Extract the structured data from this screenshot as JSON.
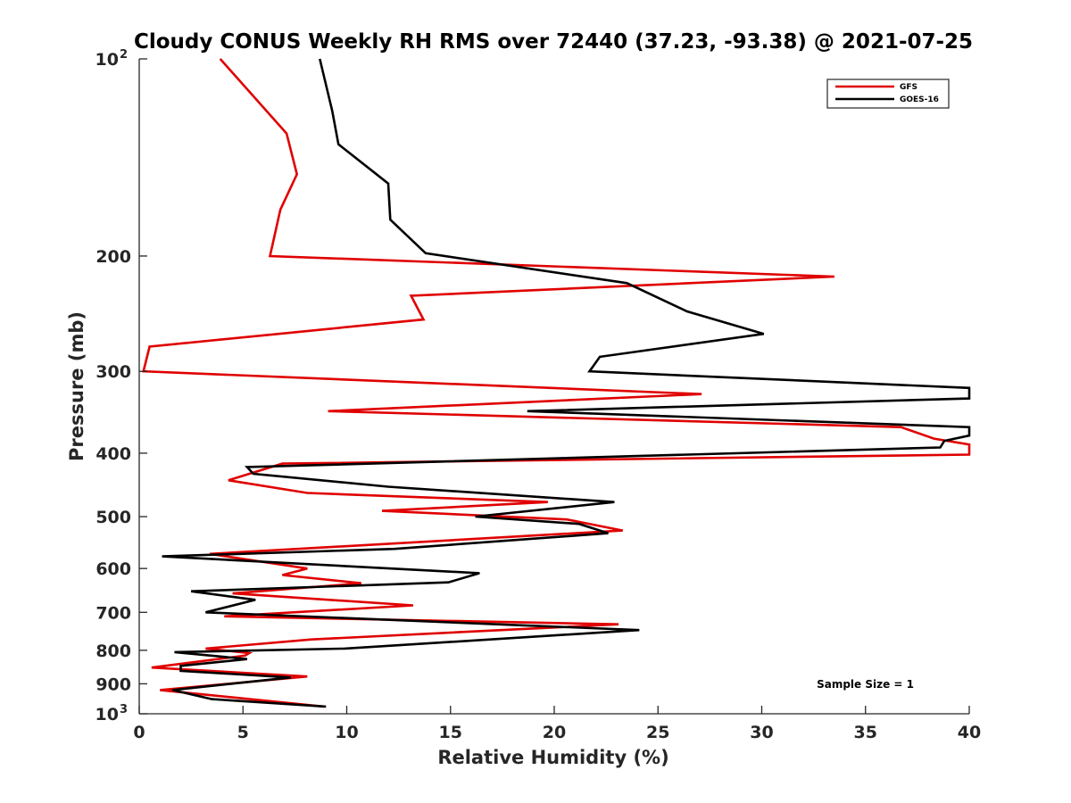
{
  "chart_data": {
    "type": "line",
    "title": "Cloudy CONUS Weekly RH RMS over 72440 (37.23, -93.38) @ 2021-07-25",
    "xlabel": "Relative Humidity (%)",
    "ylabel": "Pressure (mb)",
    "xlim": [
      0,
      40
    ],
    "ylim": [
      100,
      1000
    ],
    "y_scale": "log",
    "y_reversed": true,
    "grid": false,
    "legend_position": "top-right",
    "annotation": "Sample Size = 1",
    "x_ticks": [
      "0",
      "5",
      "10",
      "15",
      "20",
      "25",
      "30",
      "35",
      "40"
    ],
    "y_ticks": [
      {
        "value": 100,
        "base": "10",
        "exp": "2"
      },
      {
        "value": 200,
        "base": "200",
        "exp": ""
      },
      {
        "value": 300,
        "base": "300",
        "exp": ""
      },
      {
        "value": 400,
        "base": "400",
        "exp": ""
      },
      {
        "value": 500,
        "base": "500",
        "exp": ""
      },
      {
        "value": 600,
        "base": "600",
        "exp": ""
      },
      {
        "value": 700,
        "base": "700",
        "exp": ""
      },
      {
        "value": 800,
        "base": "800",
        "exp": ""
      },
      {
        "value": 900,
        "base": "900",
        "exp": ""
      },
      {
        "value": 1000,
        "base": "10",
        "exp": "3"
      }
    ],
    "series": [
      {
        "name": "GFS",
        "color": "#e00000",
        "points": [
          [
            3.9,
            100
          ],
          [
            7.1,
            130
          ],
          [
            7.6,
            150
          ],
          [
            6.8,
            170
          ],
          [
            6.3,
            200
          ],
          [
            33.5,
            215
          ],
          [
            13.1,
            230
          ],
          [
            13.7,
            250
          ],
          [
            0.5,
            275
          ],
          [
            0.2,
            300
          ],
          [
            27.1,
            325
          ],
          [
            9.1,
            345
          ],
          [
            36.7,
            365
          ],
          [
            38.3,
            380
          ],
          [
            40.0,
            388
          ],
          [
            40.0,
            402
          ],
          [
            6.9,
            415
          ],
          [
            4.3,
            440
          ],
          [
            8.1,
            460
          ],
          [
            19.7,
            475
          ],
          [
            11.7,
            490
          ],
          [
            20.6,
            505
          ],
          [
            23.3,
            525
          ],
          [
            3.4,
            570
          ],
          [
            8.1,
            600
          ],
          [
            6.9,
            614
          ],
          [
            10.7,
            632
          ],
          [
            4.5,
            655
          ],
          [
            13.2,
            683
          ],
          [
            4.1,
            710
          ],
          [
            23.1,
            730
          ],
          [
            8.3,
            770
          ],
          [
            3.2,
            795
          ],
          [
            5.3,
            808
          ],
          [
            5.1,
            815
          ],
          [
            0.6,
            850
          ],
          [
            8.1,
            877
          ],
          [
            1.0,
            920
          ],
          [
            8.9,
            975
          ]
        ]
      },
      {
        "name": "GOES-16",
        "color": "#000000",
        "points": [
          [
            8.7,
            100
          ],
          [
            9.3,
            120
          ],
          [
            9.6,
            135
          ],
          [
            12.0,
            155
          ],
          [
            12.1,
            176
          ],
          [
            13.8,
            198
          ],
          [
            23.5,
            220
          ],
          [
            26.4,
            243
          ],
          [
            30.1,
            263
          ],
          [
            22.2,
            285
          ],
          [
            21.7,
            300
          ],
          [
            40.0,
            318
          ],
          [
            40.0,
            330
          ],
          [
            18.7,
            345
          ],
          [
            40.0,
            365
          ],
          [
            40.0,
            376
          ],
          [
            38.8,
            383
          ],
          [
            38.6,
            392
          ],
          [
            5.2,
            420
          ],
          [
            5.5,
            430
          ],
          [
            12.0,
            450
          ],
          [
            22.9,
            475
          ],
          [
            16.2,
            500
          ],
          [
            21.2,
            513
          ],
          [
            22.6,
            530
          ],
          [
            12.3,
            560
          ],
          [
            1.1,
            575
          ],
          [
            16.4,
            610
          ],
          [
            14.9,
            630
          ],
          [
            2.5,
            650
          ],
          [
            5.6,
            670
          ],
          [
            3.2,
            700
          ],
          [
            24.1,
            745
          ],
          [
            9.9,
            795
          ],
          [
            1.7,
            805
          ],
          [
            5.2,
            825
          ],
          [
            2.0,
            845
          ],
          [
            2.0,
            860
          ],
          [
            7.3,
            880
          ],
          [
            1.6,
            920
          ],
          [
            3.5,
            950
          ],
          [
            9.0,
            975
          ]
        ]
      }
    ]
  }
}
